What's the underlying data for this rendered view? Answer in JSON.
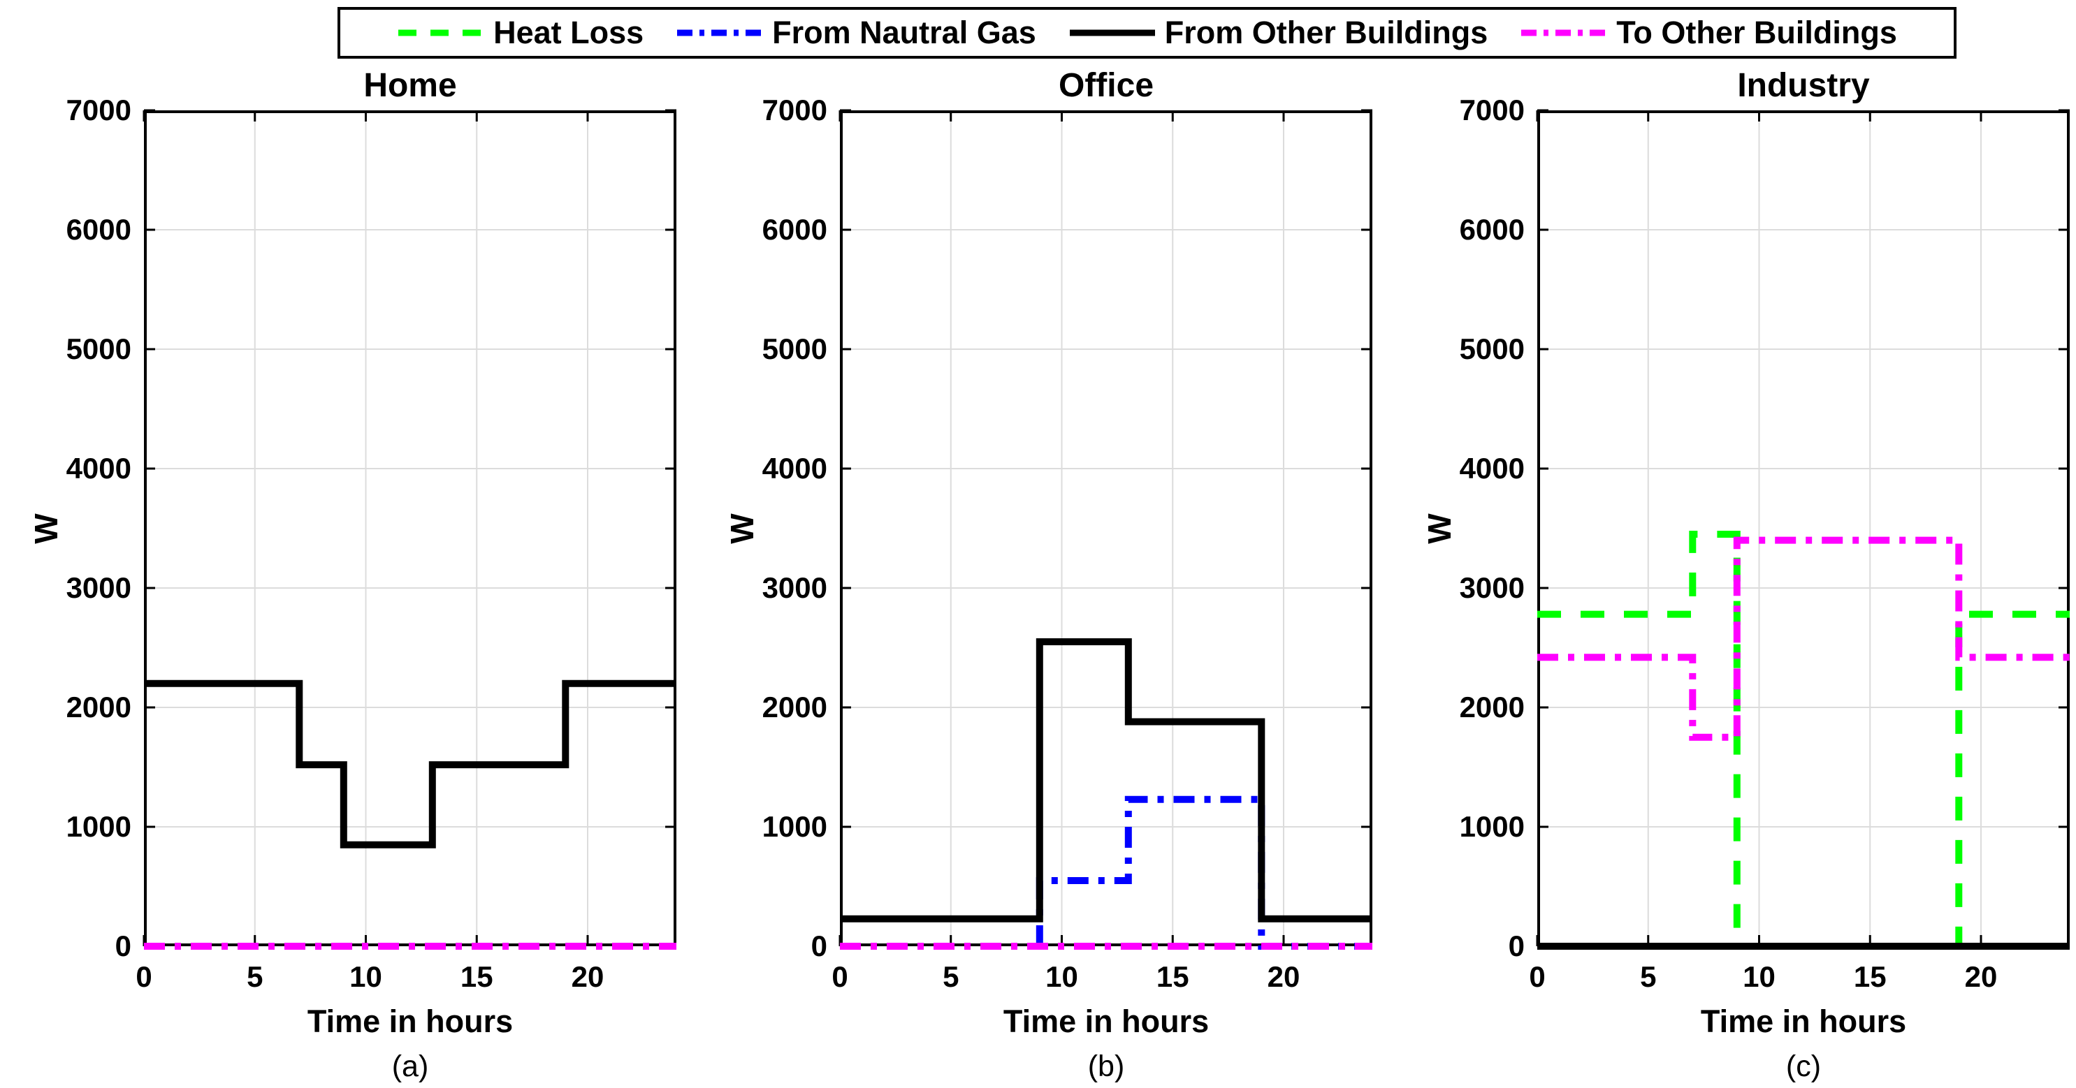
{
  "figure": {
    "background": "#FFFFFF",
    "grid_color": "#DCDCDC",
    "axis_color": "#000000"
  },
  "legend": {
    "items": [
      {
        "label": "Heat Loss",
        "color": "#00FF00",
        "style": "dashed"
      },
      {
        "label": "From Nautral Gas",
        "color": "#0000FF",
        "style": "dashdot"
      },
      {
        "label": "From Other Buildings",
        "color": "#000000",
        "style": "solid"
      },
      {
        "label": "To Other Buildings",
        "color": "#FF00FF",
        "style": "dashdot"
      }
    ]
  },
  "chart_data": [
    {
      "type": "line",
      "step": true,
      "title": "Home",
      "caption": "(a)",
      "xlabel": "Time in hours",
      "ylabel": "W",
      "xlim": [
        0,
        24
      ],
      "ylim": [
        0,
        7000
      ],
      "xticks": [
        0,
        5,
        10,
        15,
        20
      ],
      "yticks": [
        0,
        1000,
        2000,
        3000,
        4000,
        5000,
        6000,
        7000
      ],
      "grid": true,
      "series": [
        {
          "name": "From Other Buildings",
          "color": "#000000",
          "style": "solid",
          "points": [
            [
              0,
              2200
            ],
            [
              7,
              2200
            ],
            [
              7,
              1520
            ],
            [
              9,
              1520
            ],
            [
              9,
              850
            ],
            [
              13,
              850
            ],
            [
              13,
              1520
            ],
            [
              19,
              1520
            ],
            [
              19,
              2200
            ],
            [
              24,
              2200
            ]
          ]
        },
        {
          "name": "To Other Buildings",
          "color": "#FF00FF",
          "style": "dashdot",
          "points": [
            [
              0,
              0
            ],
            [
              24,
              0
            ]
          ]
        }
      ]
    },
    {
      "type": "line",
      "step": true,
      "title": "Office",
      "caption": "(b)",
      "xlabel": "Time in hours",
      "ylabel": "W",
      "xlim": [
        0,
        24
      ],
      "ylim": [
        0,
        7000
      ],
      "xticks": [
        0,
        5,
        10,
        15,
        20
      ],
      "yticks": [
        0,
        1000,
        2000,
        3000,
        4000,
        5000,
        6000,
        7000
      ],
      "grid": true,
      "series": [
        {
          "name": "From Nautral Gas",
          "color": "#0000FF",
          "style": "dashdot",
          "points": [
            [
              9,
              0
            ],
            [
              9,
              550
            ],
            [
              13,
              550
            ],
            [
              13,
              1230
            ],
            [
              19,
              1230
            ],
            [
              19,
              0
            ],
            [
              24,
              0
            ]
          ]
        },
        {
          "name": "From Other Buildings",
          "color": "#000000",
          "style": "solid",
          "points": [
            [
              0,
              230
            ],
            [
              9,
              230
            ],
            [
              9,
              2550
            ],
            [
              13,
              2550
            ],
            [
              13,
              1880
            ],
            [
              19,
              1880
            ],
            [
              19,
              230
            ],
            [
              24,
              230
            ]
          ]
        },
        {
          "name": "To Other Buildings",
          "color": "#FF00FF",
          "style": "dashdot",
          "points": [
            [
              0,
              0
            ],
            [
              24,
              0
            ]
          ]
        }
      ]
    },
    {
      "type": "line",
      "step": true,
      "title": "Industry",
      "caption": "(c)",
      "xlabel": "Time in hours",
      "ylabel": "W",
      "xlim": [
        0,
        24
      ],
      "ylim": [
        0,
        7000
      ],
      "xticks": [
        0,
        5,
        10,
        15,
        20
      ],
      "yticks": [
        0,
        1000,
        2000,
        3000,
        4000,
        5000,
        6000,
        7000
      ],
      "grid": true,
      "series": [
        {
          "name": "Heat Loss",
          "color": "#00FF00",
          "style": "dashed",
          "points": [
            [
              0,
              2780
            ],
            [
              7,
              2780
            ],
            [
              7,
              3450
            ],
            [
              9,
              3450
            ],
            [
              9,
              0
            ],
            [
              19,
              0
            ],
            [
              19,
              2780
            ],
            [
              24,
              2780
            ]
          ]
        },
        {
          "name": "From Other Buildings",
          "color": "#000000",
          "style": "solid",
          "points": [
            [
              0,
              0
            ],
            [
              24,
              0
            ]
          ]
        },
        {
          "name": "To Other Buildings",
          "color": "#FF00FF",
          "style": "dashdot",
          "points": [
            [
              0,
              2420
            ],
            [
              7,
              2420
            ],
            [
              7,
              1750
            ],
            [
              9,
              1750
            ],
            [
              9,
              3400
            ],
            [
              19,
              3400
            ],
            [
              19,
              2420
            ],
            [
              24,
              2420
            ]
          ]
        }
      ]
    }
  ]
}
